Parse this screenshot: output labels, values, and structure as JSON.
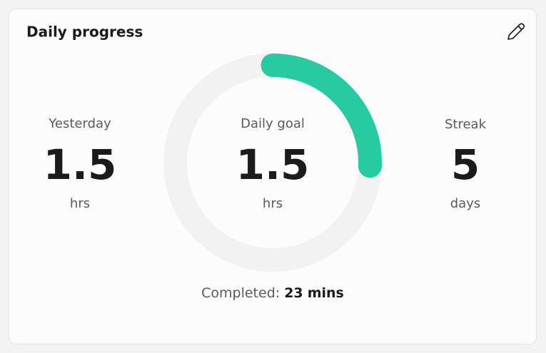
{
  "title": "Daily progress",
  "yesterday": {
    "label": "Yesterday",
    "value": 1.5,
    "unit": "hrs"
  },
  "daily_goal": {
    "label": "Daily goal",
    "value": 1.5,
    "unit": "hrs"
  },
  "streak": {
    "label": "Streak",
    "value": 5,
    "unit": "days"
  },
  "completed": {
    "label": "Completed:",
    "value": 23,
    "unit": "mins"
  }
}
